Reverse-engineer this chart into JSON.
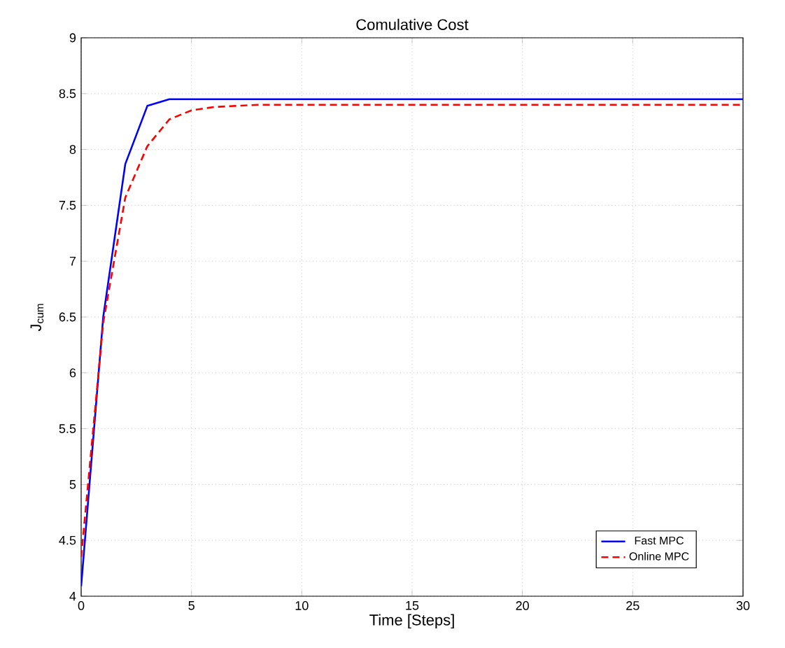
{
  "chart_data": {
    "type": "line",
    "title": "Comulative Cost",
    "xlabel": "Time [Steps]",
    "ylabel": "J$_{cum}$",
    "x": [
      0,
      1,
      2,
      3,
      4,
      5,
      6,
      7,
      8,
      10,
      15,
      20,
      25,
      30
    ],
    "series": [
      {
        "name": "Fast MPC",
        "color": "#0000ff",
        "line_style": "solid",
        "values": [
          4.09,
          6.5,
          7.87,
          8.39,
          8.45,
          8.45,
          8.45,
          8.45,
          8.45,
          8.45,
          8.45,
          8.45,
          8.45,
          8.45
        ]
      },
      {
        "name": "Online MPC",
        "color": "#ff0000",
        "line_style": "dashed",
        "values": [
          4.35,
          6.45,
          7.57,
          8.03,
          8.27,
          8.35,
          8.38,
          8.39,
          8.4,
          8.4,
          8.4,
          8.4,
          8.4,
          8.4
        ]
      }
    ],
    "xlim": [
      0,
      30
    ],
    "ylim": [
      4,
      9
    ],
    "xticks": [
      0,
      5,
      10,
      15,
      20,
      25,
      30
    ],
    "yticks": [
      4,
      4.5,
      5,
      5.5,
      6,
      6.5,
      7,
      7.5,
      8,
      8.5,
      9
    ],
    "grid": true,
    "legend": "bottom right"
  }
}
